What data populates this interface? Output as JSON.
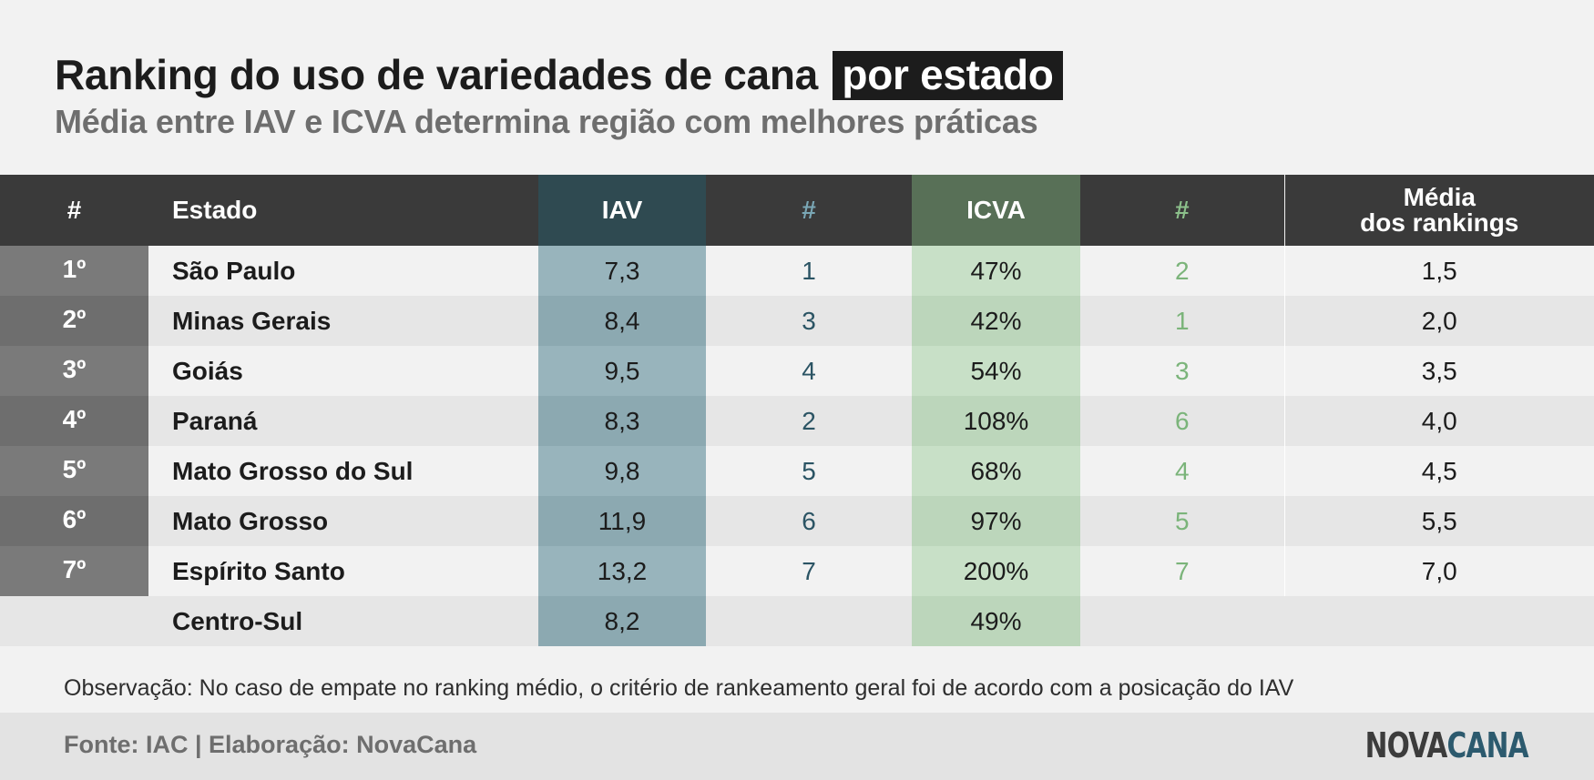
{
  "header": {
    "title": "Ranking do uso de variedades de cana",
    "title_highlight": "por estado",
    "subtitle": "Média entre IAV e ICVA determina região com melhores práticas"
  },
  "chart_data": {
    "type": "table",
    "columns": {
      "pos": "#",
      "estado": "Estado",
      "iav": "IAV",
      "iav_rank": "#",
      "icva": "ICVA",
      "icva_rank": "#",
      "media_line1": "Média",
      "media_line2": "dos rankings"
    },
    "rows": [
      {
        "pos": "1º",
        "estado": "São Paulo",
        "iav": "7,3",
        "iav_rank": "1",
        "icva": "47%",
        "icva_rank": "2",
        "media": "1,5"
      },
      {
        "pos": "2º",
        "estado": "Minas Gerais",
        "iav": "8,4",
        "iav_rank": "3",
        "icva": "42%",
        "icva_rank": "1",
        "media": "2,0"
      },
      {
        "pos": "3º",
        "estado": "Goiás",
        "iav": "9,5",
        "iav_rank": "4",
        "icva": "54%",
        "icva_rank": "3",
        "media": "3,5"
      },
      {
        "pos": "4º",
        "estado": "Paraná",
        "iav": "8,3",
        "iav_rank": "2",
        "icva": "108%",
        "icva_rank": "6",
        "media": "4,0"
      },
      {
        "pos": "5º",
        "estado": "Mato Grosso do Sul",
        "iav": "9,8",
        "iav_rank": "5",
        "icva": "68%",
        "icva_rank": "4",
        "media": "4,5"
      },
      {
        "pos": "6º",
        "estado": "Mato Grosso",
        "iav": "11,9",
        "iav_rank": "6",
        "icva": "97%",
        "icva_rank": "5",
        "media": "5,5"
      },
      {
        "pos": "7º",
        "estado": "Espírito Santo",
        "iav": "13,2",
        "iav_rank": "7",
        "icva": "200%",
        "icva_rank": "7",
        "media": "7,0"
      },
      {
        "pos": "",
        "estado": "Centro-Sul",
        "iav": "8,2",
        "iav_rank": "",
        "icva": "49%",
        "icva_rank": "",
        "media": ""
      }
    ]
  },
  "note": "Observação: No caso de empate no ranking médio, o critério de rankeamento geral foi de acordo com a posicação do IAV",
  "footer": {
    "source": "Fonte: IAC | Elaboração: NovaCana",
    "logo_part1": "NOVA",
    "logo_part2": "CANA"
  },
  "colors": {
    "header_bg": "#3a3a3a",
    "iav_header": "#2f4a51",
    "icva_header": "#587057",
    "iav_cells": "#98b4bc",
    "icva_cells": "#c8e0c7"
  }
}
